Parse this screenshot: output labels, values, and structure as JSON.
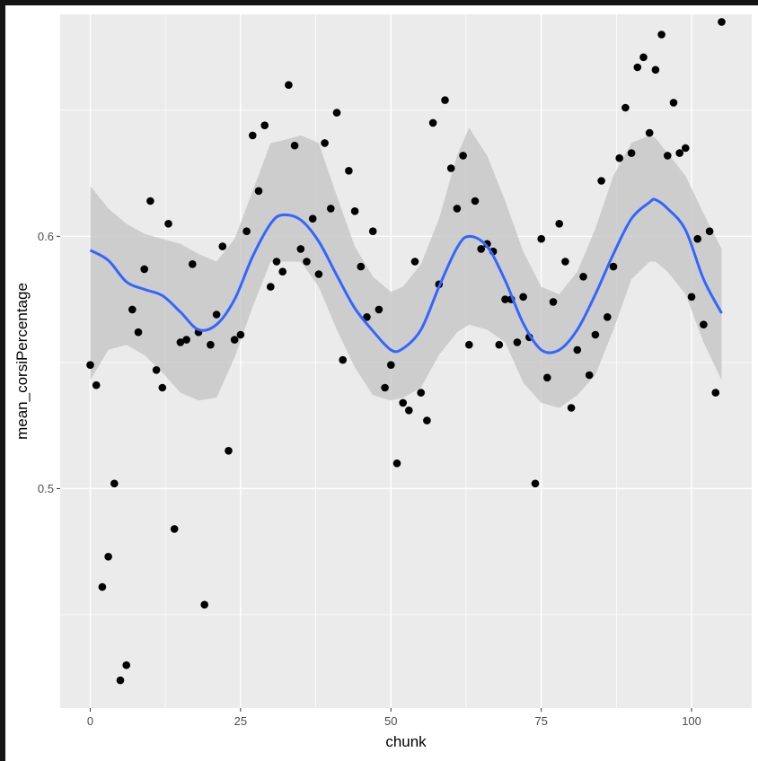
{
  "chart_data": {
    "type": "scatter",
    "xlabel": "chunk",
    "ylabel": "mean_corsiPercentage",
    "xlim": [
      -5,
      110
    ],
    "ylim": [
      0.413,
      0.688
    ],
    "x_ticks": [
      0,
      25,
      50,
      75,
      100
    ],
    "x_tick_labels": [
      "0",
      "25",
      "50",
      "75",
      "100"
    ],
    "y_ticks": [
      0.5,
      0.6
    ],
    "y_tick_labels": [
      "0.5",
      "0.6"
    ],
    "grid": true,
    "legend": "none",
    "colors": {
      "panel": "#ebebeb",
      "grid": "#ffffff",
      "points": "#000000",
      "smooth_line": "#3366ff",
      "ribbon": "#c3c3c3"
    },
    "points": [
      [
        0,
        0.549
      ],
      [
        1,
        0.541
      ],
      [
        2,
        0.461
      ],
      [
        3,
        0.473
      ],
      [
        4,
        0.502
      ],
      [
        5,
        0.424
      ],
      [
        6,
        0.43
      ],
      [
        7,
        0.571
      ],
      [
        8,
        0.562
      ],
      [
        9,
        0.587
      ],
      [
        10,
        0.614
      ],
      [
        11,
        0.547
      ],
      [
        12,
        0.54
      ],
      [
        13,
        0.605
      ],
      [
        14,
        0.484
      ],
      [
        15,
        0.558
      ],
      [
        16,
        0.559
      ],
      [
        17,
        0.589
      ],
      [
        18,
        0.562
      ],
      [
        19,
        0.454
      ],
      [
        20,
        0.557
      ],
      [
        21,
        0.569
      ],
      [
        22,
        0.596
      ],
      [
        23,
        0.515
      ],
      [
        24,
        0.559
      ],
      [
        25,
        0.561
      ],
      [
        26,
        0.602
      ],
      [
        27,
        0.64
      ],
      [
        28,
        0.618
      ],
      [
        29,
        0.644
      ],
      [
        30,
        0.58
      ],
      [
        31,
        0.59
      ],
      [
        32,
        0.586
      ],
      [
        33,
        0.66
      ],
      [
        34,
        0.636
      ],
      [
        35,
        0.595
      ],
      [
        36,
        0.59
      ],
      [
        37,
        0.607
      ],
      [
        38,
        0.585
      ],
      [
        39,
        0.637
      ],
      [
        40,
        0.611
      ],
      [
        41,
        0.649
      ],
      [
        42,
        0.551
      ],
      [
        43,
        0.626
      ],
      [
        44,
        0.61
      ],
      [
        45,
        0.588
      ],
      [
        46,
        0.568
      ],
      [
        47,
        0.602
      ],
      [
        48,
        0.571
      ],
      [
        49,
        0.54
      ],
      [
        50,
        0.549
      ],
      [
        51,
        0.51
      ],
      [
        52,
        0.534
      ],
      [
        53,
        0.531
      ],
      [
        54,
        0.59
      ],
      [
        55,
        0.538
      ],
      [
        56,
        0.527
      ],
      [
        57,
        0.645
      ],
      [
        58,
        0.581
      ],
      [
        59,
        0.654
      ],
      [
        60,
        0.627
      ],
      [
        61,
        0.611
      ],
      [
        62,
        0.632
      ],
      [
        63,
        0.557
      ],
      [
        64,
        0.614
      ],
      [
        65,
        0.595
      ],
      [
        66,
        0.597
      ],
      [
        67,
        0.594
      ],
      [
        68,
        0.557
      ],
      [
        69,
        0.575
      ],
      [
        70,
        0.575
      ],
      [
        71,
        0.558
      ],
      [
        72,
        0.576
      ],
      [
        73,
        0.56
      ],
      [
        74,
        0.502
      ],
      [
        75,
        0.599
      ],
      [
        76,
        0.544
      ],
      [
        77,
        0.574
      ],
      [
        78,
        0.605
      ],
      [
        79,
        0.59
      ],
      [
        80,
        0.532
      ],
      [
        81,
        0.555
      ],
      [
        82,
        0.584
      ],
      [
        83,
        0.545
      ],
      [
        84,
        0.561
      ],
      [
        85,
        0.622
      ],
      [
        86,
        0.568
      ],
      [
        87,
        0.588
      ],
      [
        88,
        0.631
      ],
      [
        89,
        0.651
      ],
      [
        90,
        0.633
      ],
      [
        91,
        0.667
      ],
      [
        92,
        0.671
      ],
      [
        93,
        0.641
      ],
      [
        94,
        0.666
      ],
      [
        95,
        0.68
      ],
      [
        96,
        0.632
      ],
      [
        97,
        0.653
      ],
      [
        98,
        0.633
      ],
      [
        99,
        0.635
      ],
      [
        100,
        0.576
      ],
      [
        101,
        0.599
      ],
      [
        102,
        0.565
      ],
      [
        103,
        0.602
      ],
      [
        104,
        0.538
      ],
      [
        105,
        0.685
      ]
    ],
    "smooth": {
      "x": [
        0,
        3,
        6,
        9,
        12,
        15,
        18,
        21,
        24,
        27,
        30,
        32,
        35,
        38,
        41,
        44,
        47,
        50,
        52,
        55,
        58,
        61,
        63,
        66,
        69,
        72,
        75,
        78,
        81,
        84,
        87,
        90,
        93,
        94,
        96,
        99,
        102,
        105
      ],
      "fit": [
        0.5945,
        0.5905,
        0.582,
        0.579,
        0.5765,
        0.57,
        0.563,
        0.565,
        0.575,
        0.592,
        0.605,
        0.6085,
        0.6065,
        0.598,
        0.5845,
        0.5715,
        0.5625,
        0.555,
        0.5555,
        0.563,
        0.58,
        0.5955,
        0.6,
        0.596,
        0.5825,
        0.5655,
        0.555,
        0.555,
        0.563,
        0.577,
        0.593,
        0.607,
        0.6135,
        0.6145,
        0.611,
        0.6025,
        0.583,
        0.5695
      ],
      "lower": [
        0.543,
        0.555,
        0.557,
        0.553,
        0.546,
        0.538,
        0.535,
        0.536,
        0.552,
        0.572,
        0.59,
        0.59,
        0.59,
        0.58,
        0.563,
        0.548,
        0.537,
        0.535,
        0.536,
        0.54,
        0.553,
        0.562,
        0.565,
        0.563,
        0.558,
        0.542,
        0.534,
        0.532,
        0.537,
        0.545,
        0.563,
        0.583,
        0.59,
        0.59,
        0.586,
        0.577,
        0.558,
        0.543
      ],
      "upper": [
        0.62,
        0.611,
        0.605,
        0.601,
        0.599,
        0.597,
        0.593,
        0.59,
        0.599,
        0.618,
        0.637,
        0.638,
        0.64,
        0.637,
        0.616,
        0.596,
        0.584,
        0.578,
        0.58,
        0.589,
        0.607,
        0.632,
        0.643,
        0.632,
        0.614,
        0.594,
        0.58,
        0.577,
        0.586,
        0.603,
        0.624,
        0.637,
        0.64,
        0.639,
        0.633,
        0.624,
        0.609,
        0.595
      ]
    }
  }
}
